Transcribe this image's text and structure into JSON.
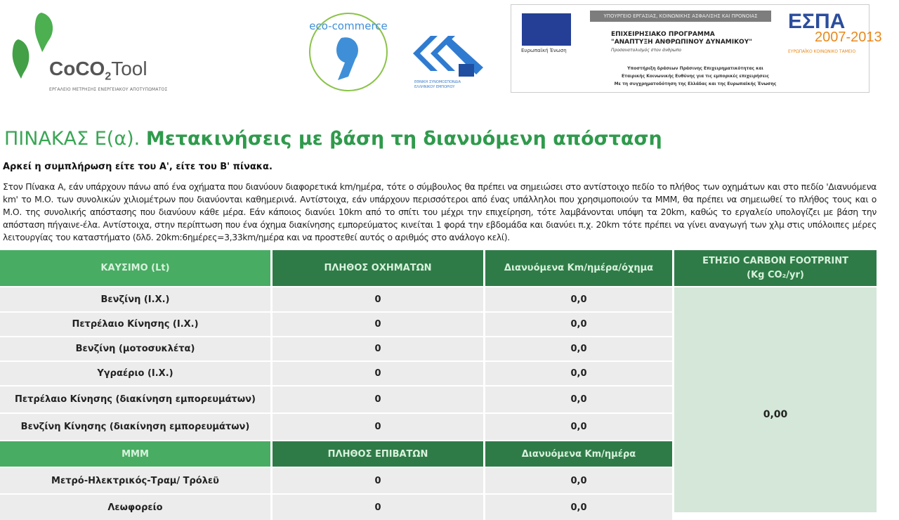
{
  "logos": {
    "coco": {
      "name_main": "CoCO",
      "name_sub": "2",
      "name_tail": "Tool",
      "tagline": "ΕΡΓΑΛΕΙΟ ΜΕΤΡΗΣΗΣ ΕΝΕΡΓΕΙΑΚΟΥ ΑΠΟΤΥΠΩΜΑΤΟΣ"
    },
    "eco": {
      "text": "eco-commerce"
    },
    "esee": {
      "text": "ΕΘΝΙΚΗ ΣΥΝΟΜΟΣΠΟΝΔΙΑ ΕΛΛΗΝΙΚΟΥ ΕΜΠΟΡΙΟΥ"
    },
    "espa_banner": {
      "ministry": "ΥΠΟΥΡΓΕΙΟ ΕΡΓΑΣΙΑΣ, ΚΟΙΝΩΝΙΚΗΣ ΑΣΦΑΛΙΣΗΣ ΚΑΙ ΠΡΟΝΟΙΑΣ",
      "program_1": "ΕΠΙΧΕΙΡΗΣΙΑΚΟ ΠΡΟΓΡΑΜΜΑ",
      "program_2": "\"ΑΝΑΠΤΥΞΗ ΑΝΘΡΩΠΙΝΟΥ ΔΥΝΑΜΙΚΟΥ\"",
      "program_3": "Προσανατολισμός στον άνθρωπο",
      "eu": "Ευρωπαϊκή Ένωση",
      "support_1": "Υποστήριξη δράσεων Πράσινης Επιχειρηματικότητας και",
      "support_2": "Εταιρικής Κοινωνικής Ευθύνης για τις εμπορικές επιχειρήσεις",
      "support_3": "Με τη συγχρηματοδότηση της Ελλάδας και της Ευρωπαϊκής Ένωσης",
      "espa": "ΕΣΠΑ",
      "years": "2007-2013",
      "fund": "ΕΥΡΩΠΑΪΚΟ ΚΟΙΝΩΝΙΚΟ ΤΑΜΕΙΟ"
    }
  },
  "title_prefix": "ΠΙΝΑΚΑΣ Ε(α). ",
  "title_main": "Μετακινήσεις με βάση τη διανυόμενη απόσταση",
  "subtitle": "Αρκεί η συμπλήρωση είτε του Α', είτε του Β' πίνακα.",
  "paragraph": "Στον Πίνακα Α, εάν υπάρχουν πάνω από ένα οχήματα που διανύουν διαφορετικά km/ημέρα, τότε ο σύμβουλος θα πρέπει να σημειώσει στο αντίστοιχο πεδίο το πλήθος των οχημάτων και στο πεδίο 'Διανυόμενα km' το Μ.Ο. των συνολικών χιλιομέτρων που διανύονται καθημερινά. Αντίστοιχα, εάν υπάρχουν περισσότεροι από ένας υπάλληλοι που χρησιμοποιούν τα ΜΜΜ, θα πρέπει να σημειωθεί το πλήθος τους και ο Μ.Ο. της συνολικής απόστασης που διανύουν κάθε μέρα. Εάν κάποιος διανύει 10km από το σπίτι του μέχρι την επιχείρηση, τότε λαμβάνονται υπόψη τα 20km, καθώς το εργαλείο υπολογίζει με βάση την απόσταση πήγαινε-έλα. Αντίστοιχα, στην περίπτωση που ένα όχημα διακίνησης εμπορεύματος κινείται 1 φορά την εβδομάδα και διανύει π.χ. 20km τότε πρέπει να γίνει αναγωγή των χλμ στις υπόλοιπες μέρες λειτουργίας του καταστήματο (δλδ. 20km:6ημέρες=3,33km/ημέρα και να προστεθεί αυτός ο αριθμός στο ανάλογο κελί).",
  "table": {
    "headers": {
      "fuel": "ΚΑΥΣΙΜΟ (Lt)",
      "vehicles": "ΠΛΗΘΟΣ ΟΧΗΜΑΤΩΝ",
      "km_vehicle": "Διανυόμενα Km/ημέρα/όχημα",
      "carbon_1": "ΕΤΗΣΙΟ CARBON FOOTPRINT",
      "carbon_2": "(Kg CO₂/yr)"
    },
    "fuel_rows": [
      {
        "label": "Βενζίνη (Ι.Χ.)",
        "count": "0",
        "km": "0,0"
      },
      {
        "label": "Πετρέλαιο Κίνησης (Ι.Χ.)",
        "count": "0",
        "km": "0,0"
      },
      {
        "label": "Βενζίνη (μοτοσυκλέτα)",
        "count": "0",
        "km": "0,0"
      },
      {
        "label": "Υγραέριο (Ι.Χ.)",
        "count": "0",
        "km": "0,0"
      },
      {
        "label": "Πετρέλαιο Κίνησης (διακίνηση εμπορευμάτων)",
        "count": "0",
        "km": "0,0"
      },
      {
        "label": "Βενζίνη Κίνησης (διακίνηση εμπορευμάτων)",
        "count": "0",
        "km": "0,0"
      }
    ],
    "mmm_headers": {
      "mmm": "ΜΜΜ",
      "passengers": "ΠΛΗΘΟΣ ΕΠΙΒΑΤΩΝ",
      "km_day": "Διανυόμενα Km/ημέρα"
    },
    "mmm_rows": [
      {
        "label": "Μετρό-Ηλεκτρικός-Τραμ/ Τρόλεϋ",
        "count": "0",
        "km": "0,0"
      },
      {
        "label": "Λεωφορείο",
        "count": "0",
        "km": "0,0"
      }
    ],
    "carbon_total": "0,00"
  }
}
